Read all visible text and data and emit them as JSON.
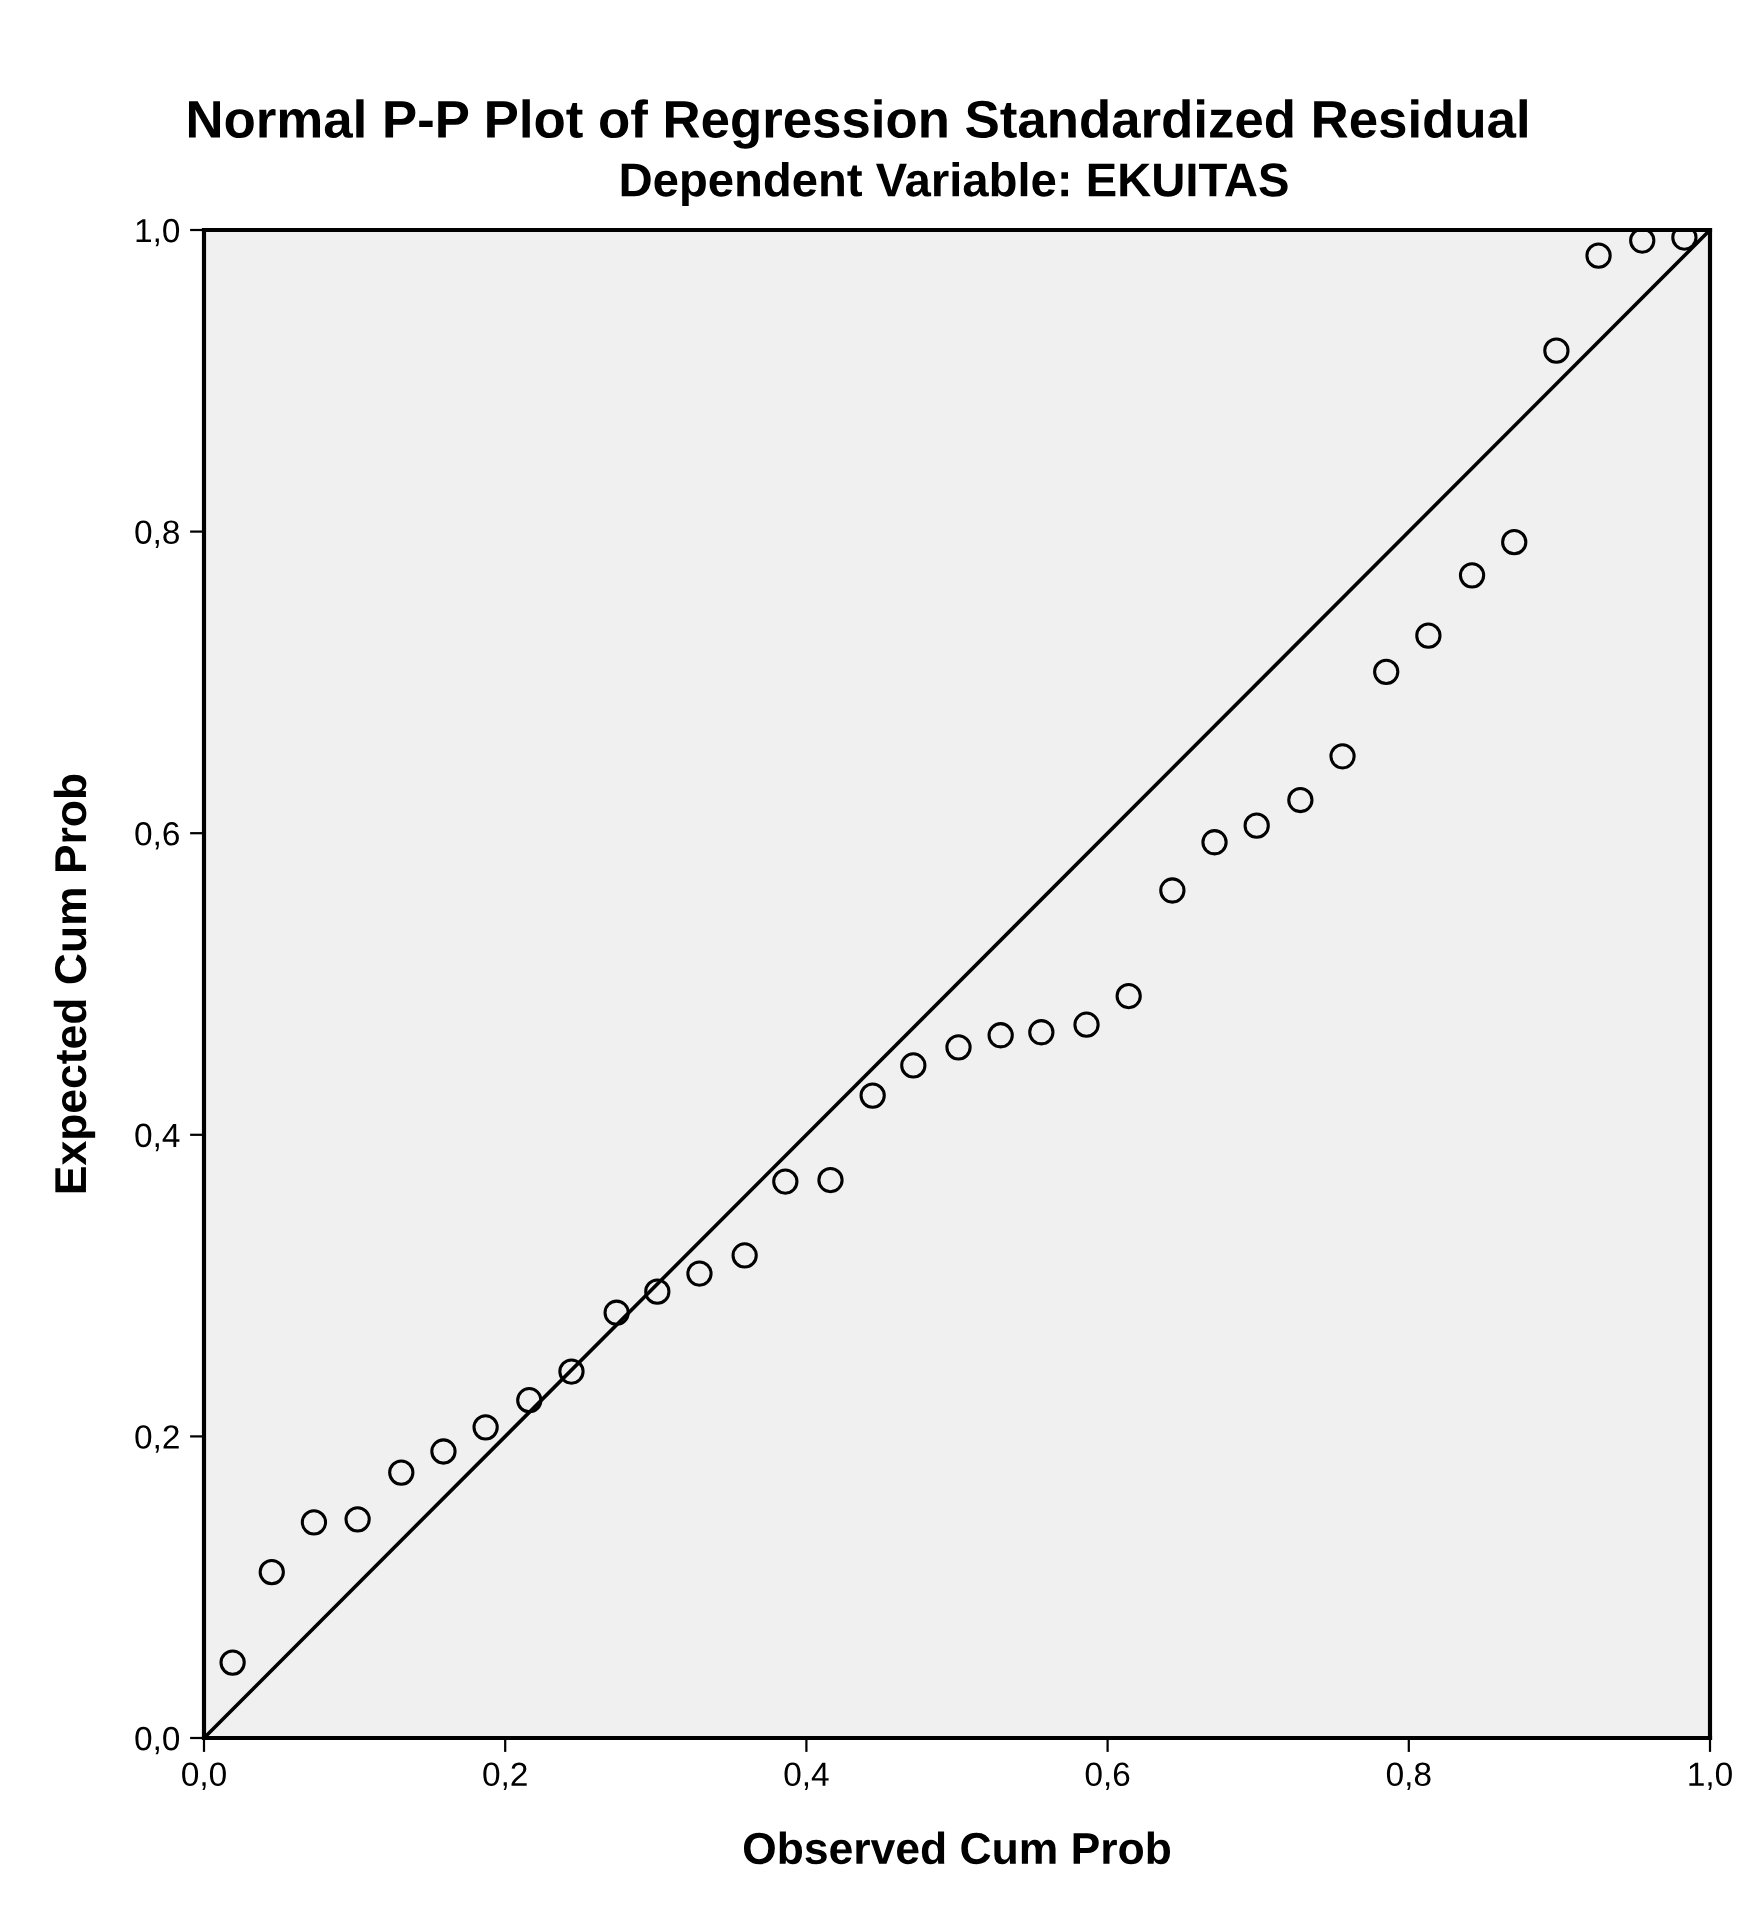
{
  "chart_data": {
    "type": "scatter",
    "title": "Normal P-P Plot of Regression Standardized Residual",
    "subtitle": "Dependent Variable: EKUITAS",
    "xlabel": "Observed Cum Prob",
    "ylabel": "Expected Cum Prob",
    "xlim": [
      0,
      1
    ],
    "ylim": [
      0,
      1
    ],
    "xticks": [
      {
        "value": 0,
        "label": "0,0"
      },
      {
        "value": 0.2,
        "label": "0,2"
      },
      {
        "value": 0.4,
        "label": "0,4"
      },
      {
        "value": 0.6,
        "label": "0,6"
      },
      {
        "value": 0.8,
        "label": "0,8"
      },
      {
        "value": 1,
        "label": "1,0"
      }
    ],
    "yticks": [
      {
        "value": 0,
        "label": "0,0"
      },
      {
        "value": 0.2,
        "label": "0,2"
      },
      {
        "value": 0.4,
        "label": "0,4"
      },
      {
        "value": 0.6,
        "label": "0,6"
      },
      {
        "value": 0.8,
        "label": "0,8"
      },
      {
        "value": 1,
        "label": "1,0"
      }
    ],
    "grid": false,
    "legend": false,
    "series": [
      {
        "marker": "circle",
        "color": "#000000",
        "x": [
          0.019,
          0.045,
          0.073,
          0.102,
          0.131,
          0.159,
          0.187,
          0.216,
          0.244,
          0.274,
          0.301,
          0.329,
          0.359,
          0.386,
          0.416,
          0.444,
          0.471,
          0.501,
          0.529,
          0.556,
          0.586,
          0.614,
          0.643,
          0.671,
          0.699,
          0.728,
          0.756,
          0.785,
          0.813,
          0.842,
          0.87,
          0.898,
          0.926,
          0.955,
          0.983
        ],
        "values": [
          0.05,
          0.11,
          0.143,
          0.145,
          0.176,
          0.19,
          0.206,
          0.224,
          0.243,
          0.282,
          0.296,
          0.308,
          0.32,
          0.369,
          0.37,
          0.426,
          0.446,
          0.458,
          0.466,
          0.468,
          0.473,
          0.492,
          0.562,
          0.594,
          0.605,
          0.622,
          0.651,
          0.707,
          0.731,
          0.771,
          0.793,
          0.92,
          0.983,
          0.993,
          0.995
        ]
      },
      {
        "type": "line",
        "marker": "none",
        "color": "#000000",
        "x": [
          0,
          1
        ],
        "values": [
          0,
          1
        ]
      }
    ]
  }
}
